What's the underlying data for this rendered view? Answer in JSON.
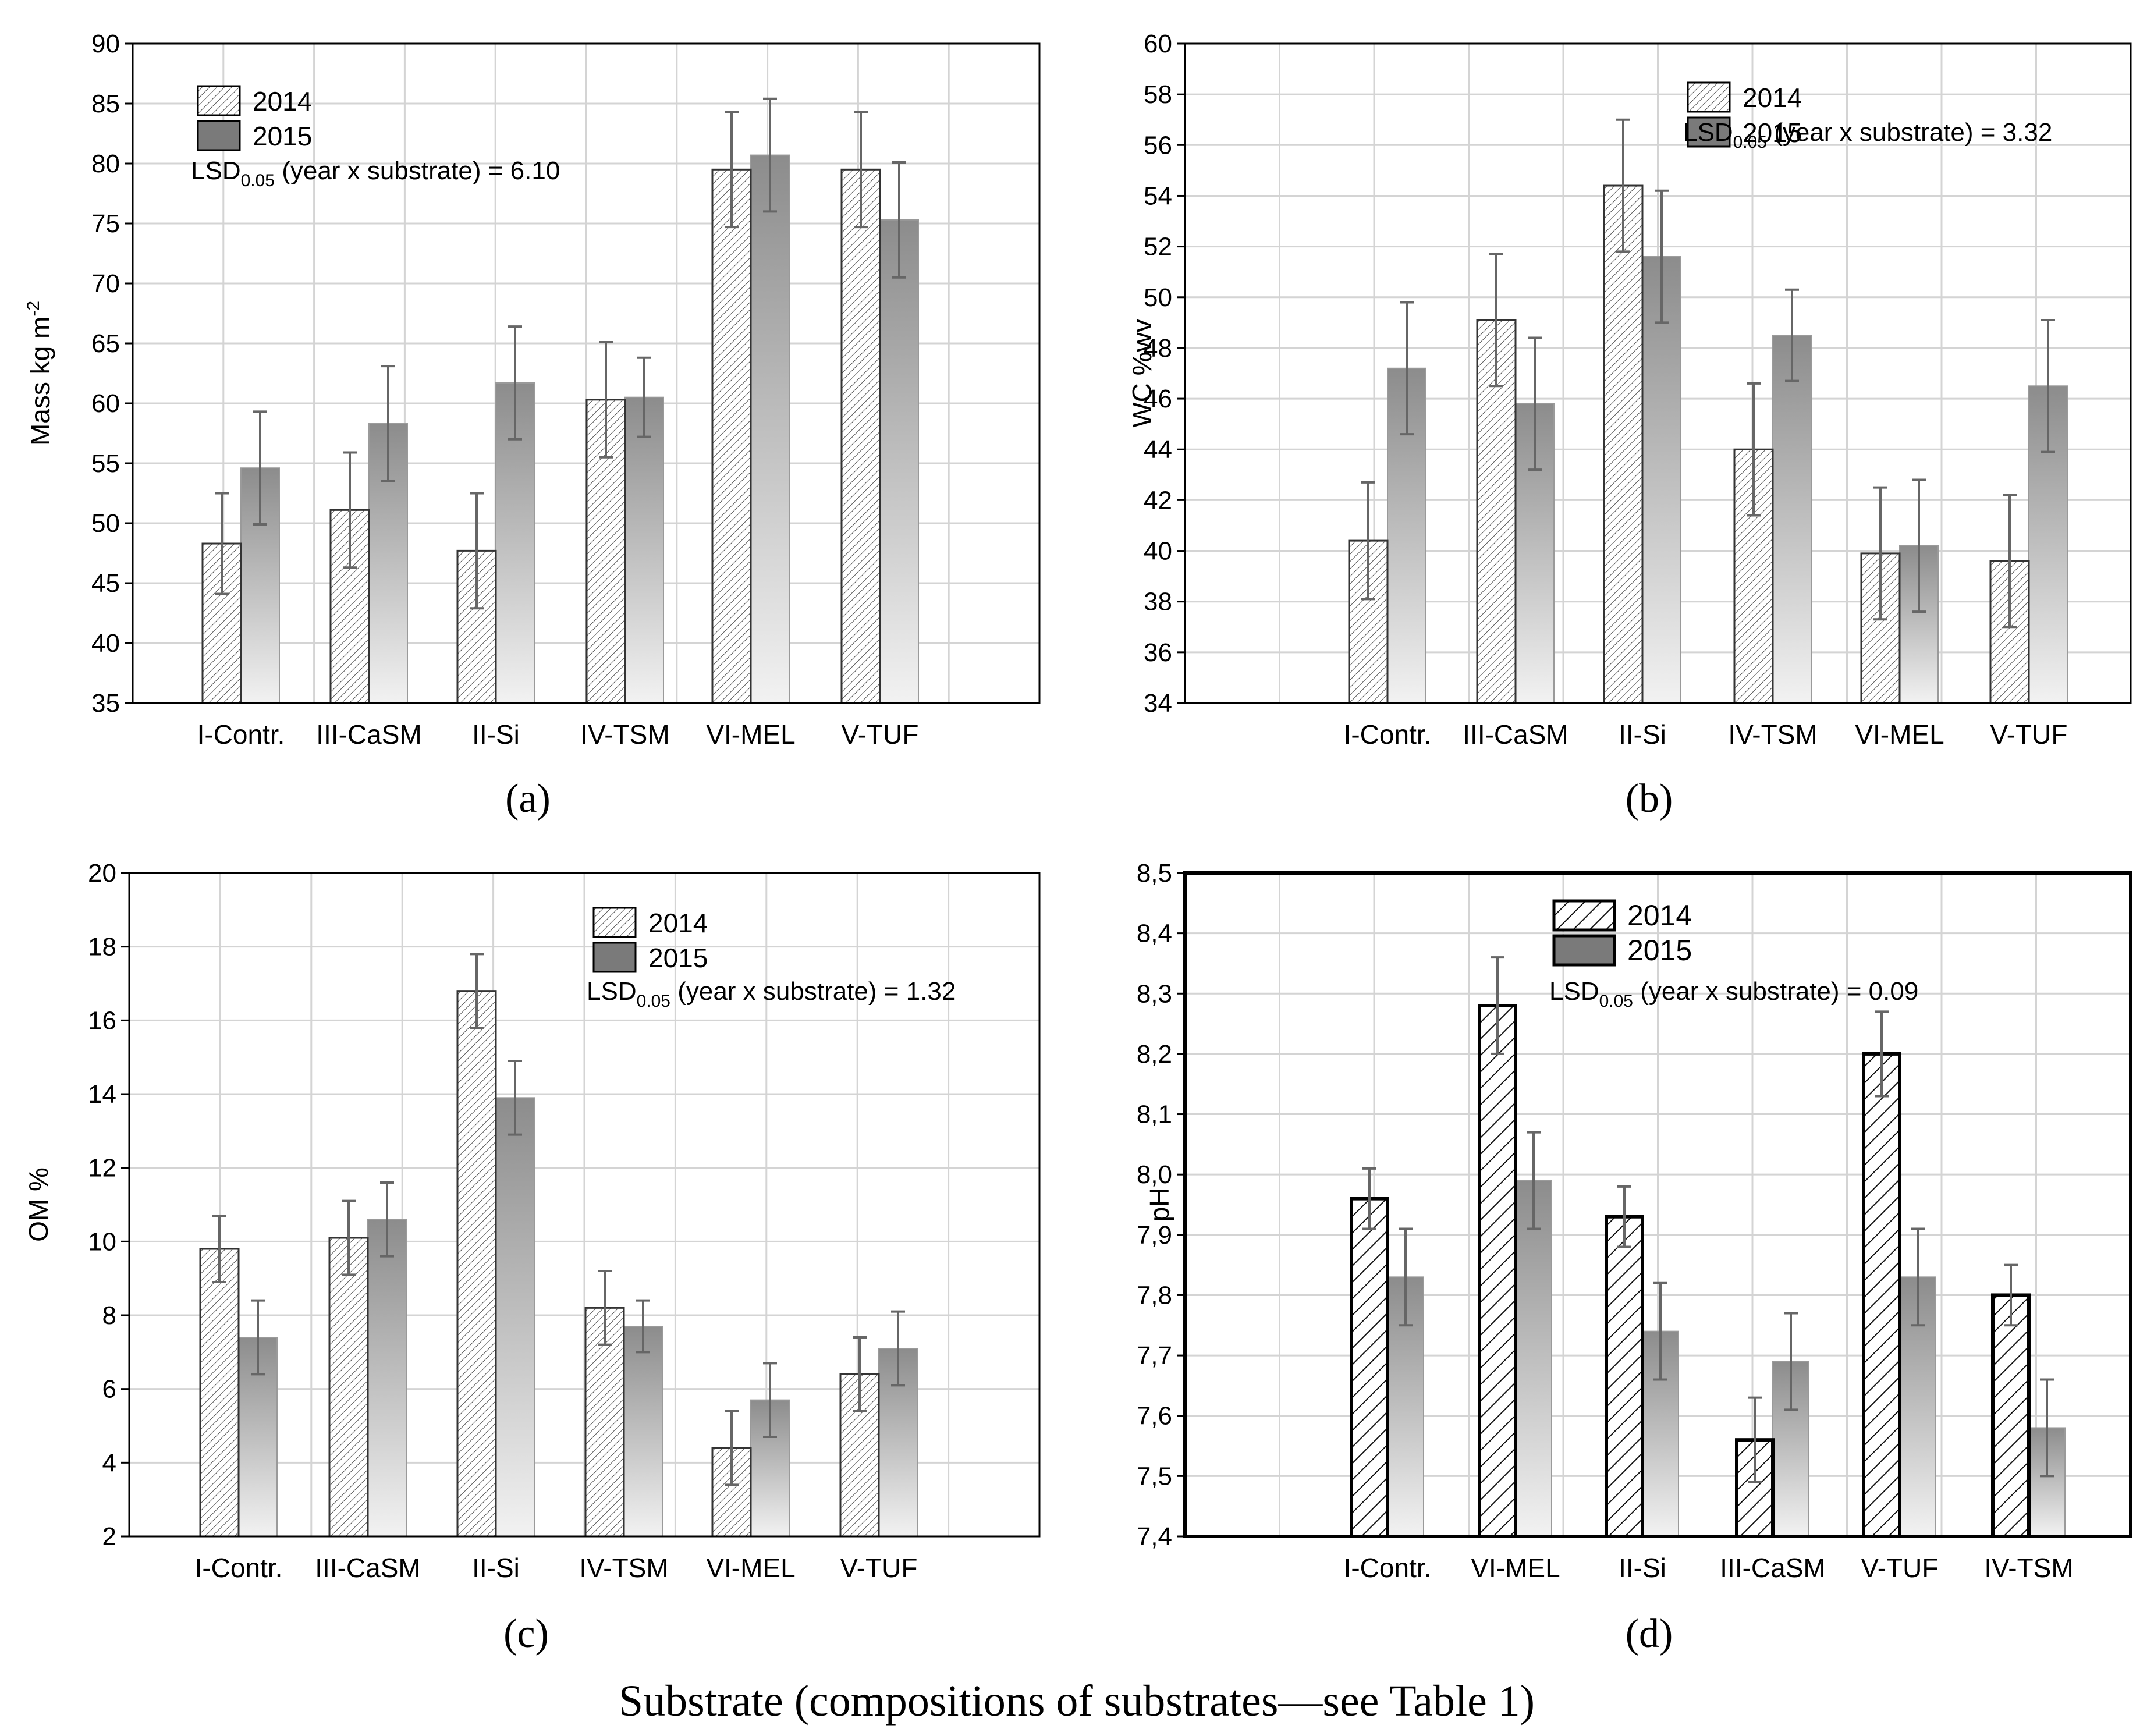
{
  "figure_caption": "Substrate (compositions of substrates—see Table 1)",
  "colors": {
    "grid": "#d4d4d4",
    "axis": "#000000",
    "bar_2014_stroke": "#333333",
    "bar_2015_top": "#8c8c8c",
    "bar_2015_bottom": "#f2f2f2",
    "error_bar": "#666666",
    "text": "#000000"
  },
  "chart_data": [
    {
      "id": "a",
      "panel_label": "(a)",
      "type": "bar",
      "ylabel_main": "Mass kg m",
      "ylabel_sup": "-2",
      "ylim": [
        35,
        90
      ],
      "yticks": [
        35,
        40,
        45,
        50,
        55,
        60,
        65,
        70,
        75,
        80,
        85,
        90
      ],
      "grid": true,
      "hatch_style": "fine",
      "legend_position": "top-left",
      "categories": [
        "I-Contr.",
        "III-CaSM",
        "II-Si",
        "IV-TSM",
        "VI-MEL",
        "V-TUF"
      ],
      "series": [
        {
          "name": "2014",
          "values": [
            48.3,
            51.1,
            47.7,
            60.3,
            79.5,
            79.5
          ],
          "errors": [
            4.2,
            4.8,
            4.8,
            4.8,
            4.8,
            4.8
          ]
        },
        {
          "name": "2015",
          "values": [
            54.6,
            58.3,
            61.7,
            60.5,
            80.7,
            75.3
          ],
          "errors": [
            4.7,
            4.8,
            4.7,
            3.3,
            4.7,
            4.8
          ]
        }
      ],
      "lsd": {
        "prefix": "LSD",
        "sub": "0.05",
        "suffix": " (year x substrate) = 6.10"
      }
    },
    {
      "id": "b",
      "panel_label": "(b)",
      "type": "bar",
      "ylabel_main": "WC %wv",
      "ylabel_sup": "",
      "ylim": [
        34,
        60
      ],
      "yticks": [
        34,
        36,
        38,
        40,
        42,
        44,
        46,
        48,
        50,
        52,
        54,
        56,
        58,
        60
      ],
      "grid": true,
      "hatch_style": "fine",
      "legend_position": "top-right",
      "categories": [
        "I-Contr.",
        "III-CaSM",
        "II-Si",
        "IV-TSM",
        "VI-MEL",
        "V-TUF"
      ],
      "series": [
        {
          "name": "2014",
          "values": [
            40.4,
            49.1,
            54.4,
            44.0,
            39.9,
            39.6
          ],
          "errors": [
            2.3,
            2.6,
            2.6,
            2.6,
            2.6,
            2.6
          ]
        },
        {
          "name": "2015",
          "values": [
            47.2,
            45.8,
            51.6,
            48.5,
            40.2,
            46.5
          ],
          "errors": [
            2.6,
            2.6,
            2.6,
            1.8,
            2.6,
            2.6
          ]
        }
      ],
      "lsd": {
        "prefix": "LSD",
        "sub": "0.05",
        "suffix": " (year x substrate) = 3.32"
      }
    },
    {
      "id": "c",
      "panel_label": "(c)",
      "type": "bar",
      "ylabel_main": "OM %",
      "ylabel_sup": "",
      "ylim": [
        2,
        20
      ],
      "yticks": [
        2,
        4,
        6,
        8,
        10,
        12,
        14,
        16,
        18,
        20
      ],
      "grid": true,
      "hatch_style": "fine",
      "legend_position": "top-right",
      "categories": [
        "I-Contr.",
        "III-CaSM",
        "II-Si",
        "IV-TSM",
        "VI-MEL",
        "V-TUF"
      ],
      "series": [
        {
          "name": "2014",
          "values": [
            9.8,
            10.1,
            16.8,
            8.2,
            4.4,
            6.4
          ],
          "errors": [
            0.9,
            1.0,
            1.0,
            1.0,
            1.0,
            1.0
          ]
        },
        {
          "name": "2015",
          "values": [
            7.4,
            10.6,
            13.9,
            7.7,
            5.7,
            7.1
          ],
          "errors": [
            1.0,
            1.0,
            1.0,
            0.7,
            1.0,
            1.0
          ]
        }
      ],
      "lsd": {
        "prefix": "LSD",
        "sub": "0.05",
        "suffix": " (year x substrate) = 1.32"
      }
    },
    {
      "id": "d",
      "panel_label": "(d)",
      "type": "bar",
      "ylabel_main": "pH",
      "ylabel_sup": "",
      "ylim": [
        7.4,
        8.5
      ],
      "yticks": [
        "7,4",
        "7,5",
        "7,6",
        "7,7",
        "7,8",
        "7,9",
        "8,0",
        "8,1",
        "8,2",
        "8,3",
        "8,4",
        "8,5"
      ],
      "ytick_values": [
        7.4,
        7.5,
        7.6,
        7.7,
        7.8,
        7.9,
        8.0,
        8.1,
        8.2,
        8.3,
        8.4,
        8.5
      ],
      "grid": true,
      "hatch_style": "bold",
      "legend_position": "top-center",
      "categories": [
        "I-Contr.",
        "VI-MEL",
        "II-Si",
        "III-CaSM",
        "V-TUF",
        "IV-TSM"
      ],
      "series": [
        {
          "name": "2014",
          "values": [
            7.96,
            8.28,
            7.93,
            7.56,
            8.2,
            7.8
          ],
          "errors": [
            0.05,
            0.08,
            0.05,
            0.07,
            0.07,
            0.05
          ]
        },
        {
          "name": "2015",
          "values": [
            7.83,
            7.99,
            7.74,
            7.69,
            7.83,
            7.58
          ],
          "errors": [
            0.08,
            0.08,
            0.08,
            0.08,
            0.08,
            0.08
          ]
        }
      ],
      "lsd": {
        "prefix": "LSD",
        "sub": "0.05",
        "suffix": " (year x substrate) = 0.09"
      }
    }
  ]
}
